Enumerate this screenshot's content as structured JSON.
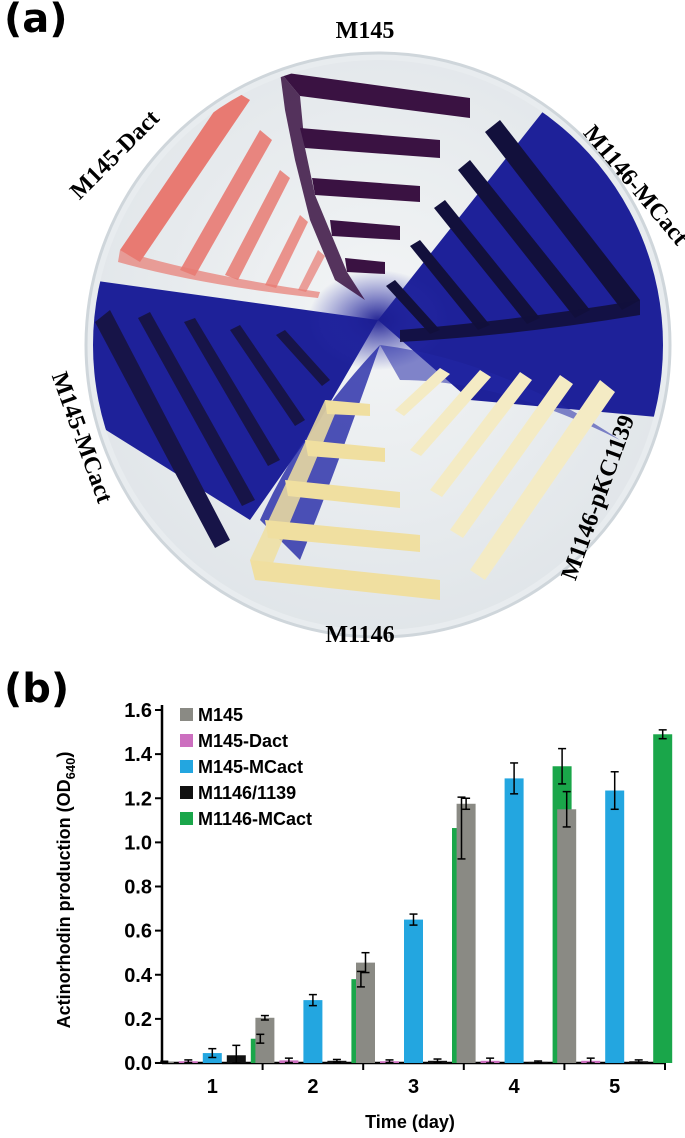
{
  "panel_a": {
    "letter": "(a)",
    "labels": {
      "top": "M145",
      "upper_left": "M145-Dact",
      "upper_right": "M1146-MCact",
      "lower_left": "M145-MCact",
      "lower_right": "M1146-pKC1139",
      "bottom": "M1146"
    },
    "colors": {
      "plate_rim": "#e6eaed",
      "agar": "#eef1f3",
      "pigment_blue": "#1a1a8a",
      "dark_purple": "#2e1040",
      "pink_streak": "#e87a72",
      "yellow_streak": "#f2e3a6",
      "pale_yellow_streak": "#f4ecc6",
      "navy_streak": "#12103a"
    }
  },
  "panel_b": {
    "letter": "(b)"
  },
  "chart_data": {
    "type": "bar",
    "xlabel": "Time (day)",
    "ylabel_main": "Actinorhodin production (OD",
    "ylabel_sub": "640",
    "ylabel_close": ")",
    "ylim": [
      0,
      1.6
    ],
    "yticks": [
      "0.0",
      "0.2",
      "0.4",
      "0.6",
      "0.8",
      "1.0",
      "1.2",
      "1.4",
      "1.6"
    ],
    "categories": [
      "1",
      "2",
      "3",
      "4",
      "5"
    ],
    "legend_position": "top-left",
    "grid": false,
    "series": [
      {
        "name": "M145",
        "color": "#8a8a84",
        "values": [
          0.005,
          0.205,
          0.455,
          1.175,
          1.15
        ],
        "errors": [
          0.003,
          0.01,
          0.045,
          0.025,
          0.08
        ]
      },
      {
        "name": "M145-Dact",
        "color": "#cc6fbf",
        "values": [
          0.008,
          0.012,
          0.008,
          0.01,
          0.01
        ],
        "errors": [
          0.006,
          0.01,
          0.006,
          0.012,
          0.012
        ]
      },
      {
        "name": "M145-MCact",
        "color": "#23a6e0",
        "values": [
          0.045,
          0.285,
          0.65,
          1.29,
          1.235
        ],
        "errors": [
          0.02,
          0.025,
          0.025,
          0.07,
          0.085
        ]
      },
      {
        "name": "M1146/1139",
        "color": "#111111",
        "values": [
          0.035,
          0.01,
          0.01,
          0.005,
          0.008
        ],
        "errors": [
          0.045,
          0.006,
          0.008,
          0.004,
          0.006
        ]
      },
      {
        "name": "M1146-MCact",
        "color": "#1aa64a",
        "values": [
          0.11,
          0.38,
          1.065,
          1.345,
          1.49
        ],
        "errors": [
          0.02,
          0.035,
          0.14,
          0.08,
          0.02
        ]
      }
    ]
  }
}
